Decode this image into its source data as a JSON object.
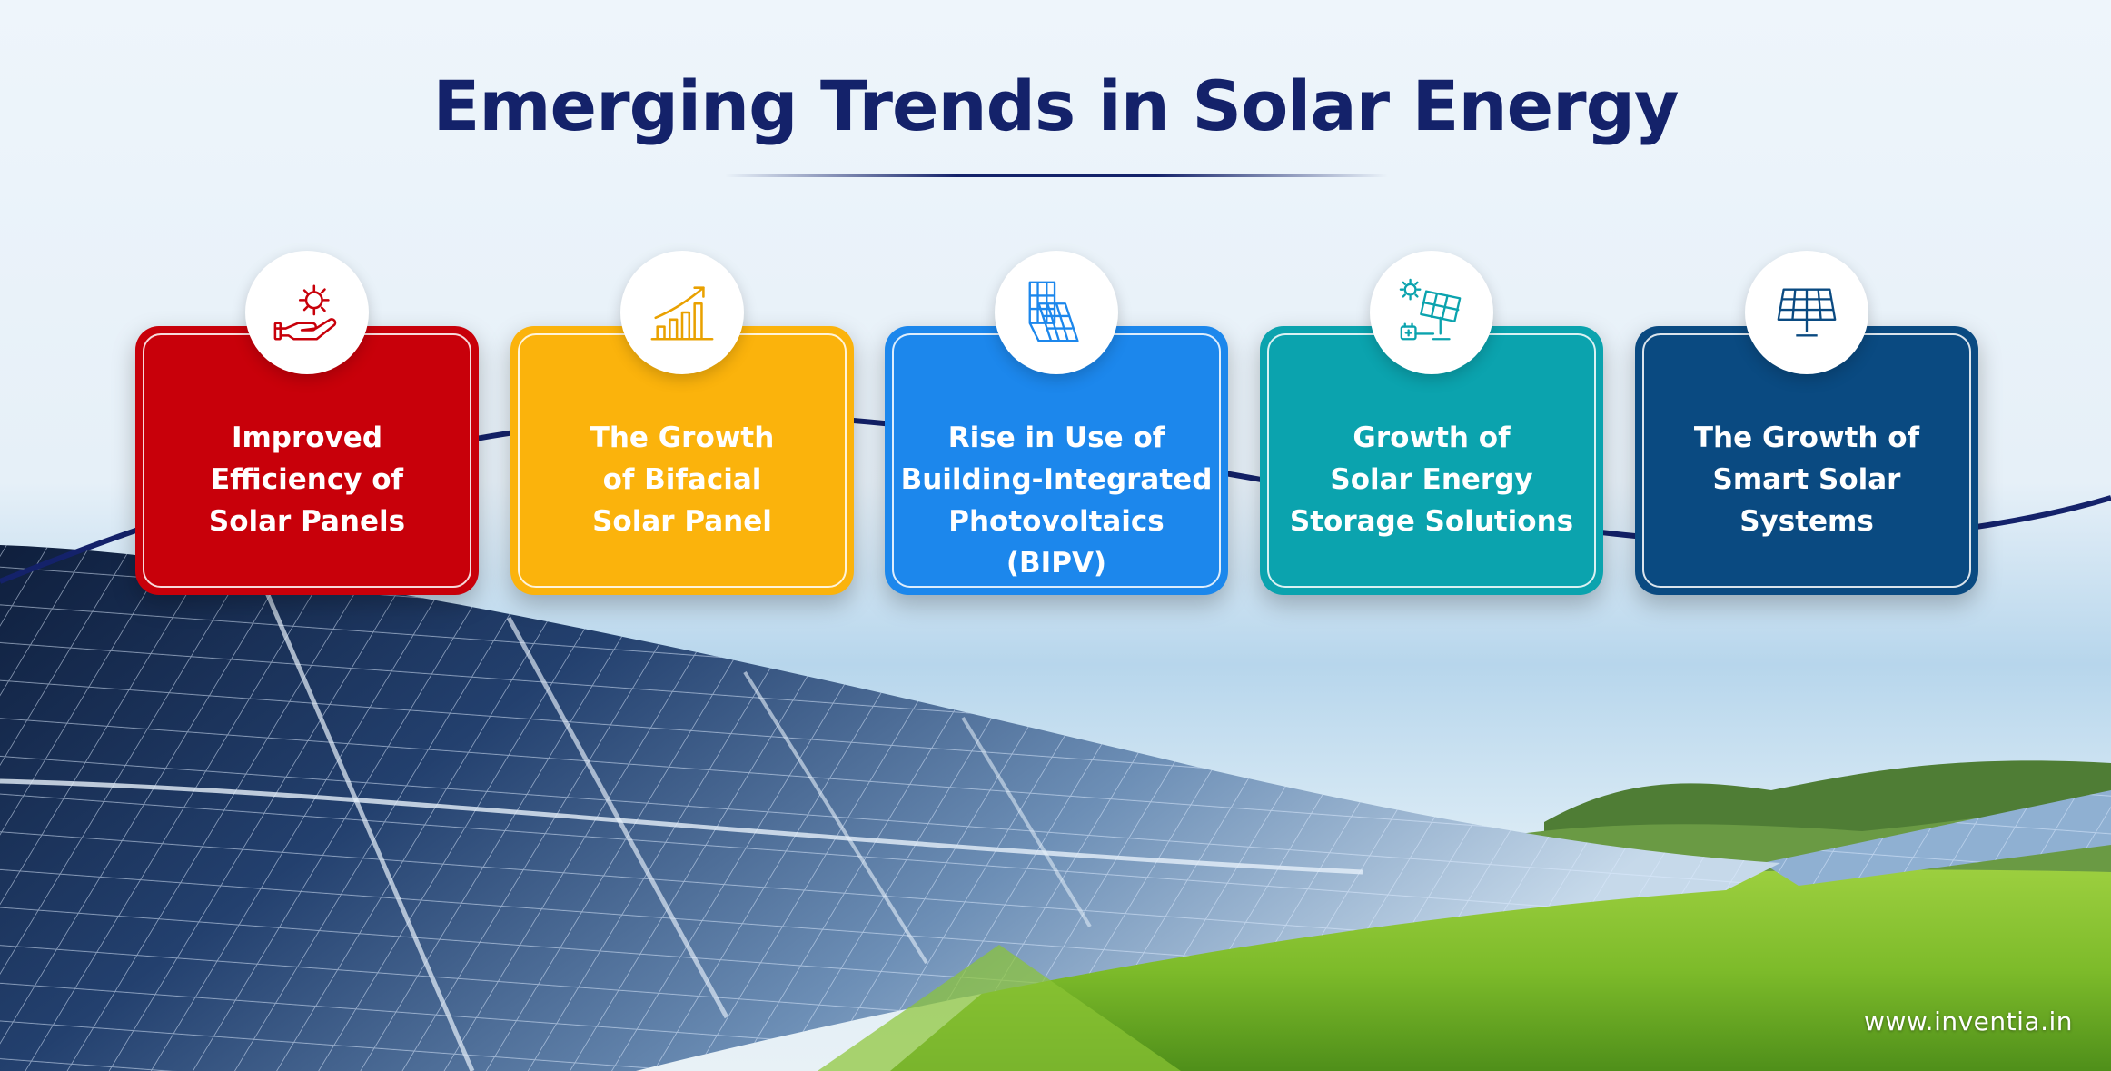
{
  "title": "Emerging Trends in Solar Energy",
  "colors": {
    "title": "#14226a",
    "card_red": "#c8000a",
    "card_yellow": "#fbb30c",
    "card_blue": "#1c87ec",
    "card_teal": "#0ba3ae",
    "card_navy": "#0a4a81"
  },
  "trends": [
    {
      "label": "Improved\nEfficiency of\nSolar Panels",
      "icon": "hand-gear-icon"
    },
    {
      "label": "The Growth\nof Bifacial\nSolar Panel",
      "icon": "growth-chart-icon"
    },
    {
      "label": "Rise in Use of\nBuilding-Integrated\nPhotovoltaics (BIPV)",
      "icon": "bipv-panels-icon"
    },
    {
      "label": "Growth of\nSolar Energy\nStorage Solutions",
      "icon": "solar-storage-icon"
    },
    {
      "label": "The Growth of\nSmart Solar\nSystems",
      "icon": "smart-solar-panel-icon"
    }
  ],
  "footer": {
    "website": "www.inventia.in"
  }
}
